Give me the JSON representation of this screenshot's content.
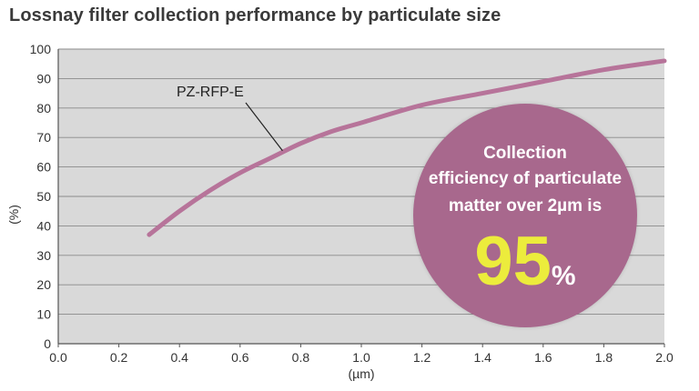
{
  "chart_data": {
    "type": "line",
    "title": "Lossnay filter collection performance by particulate size",
    "xlabel": "(µm)",
    "ylabel": "(%)",
    "xlim": [
      0.0,
      2.0
    ],
    "ylim": [
      0,
      100
    ],
    "x_ticks": [
      "0.0",
      "0.2",
      "0.4",
      "0.6",
      "0.8",
      "1.0",
      "1.2",
      "1.4",
      "1.6",
      "1.8",
      "2.0"
    ],
    "y_ticks": [
      "0",
      "10",
      "20",
      "30",
      "40",
      "50",
      "60",
      "70",
      "80",
      "90",
      "100"
    ],
    "grid": "horizontal",
    "series": [
      {
        "name": "PZ-RFP-E",
        "color": "#b7749a",
        "x": [
          0.3,
          0.4,
          0.5,
          0.6,
          0.7,
          0.8,
          0.9,
          1.0,
          1.2,
          1.4,
          1.6,
          1.8,
          2.0
        ],
        "y": [
          37,
          45,
          52,
          58,
          63,
          68,
          72,
          75,
          81,
          85,
          89,
          93,
          96
        ]
      }
    ]
  },
  "callout": {
    "line1": "Collection",
    "line2": "efficiency of particulate",
    "line3": "matter over 2µm is",
    "value": "95",
    "unit": "%",
    "bg_color": "#a8688d",
    "value_color": "#ecec3c"
  }
}
